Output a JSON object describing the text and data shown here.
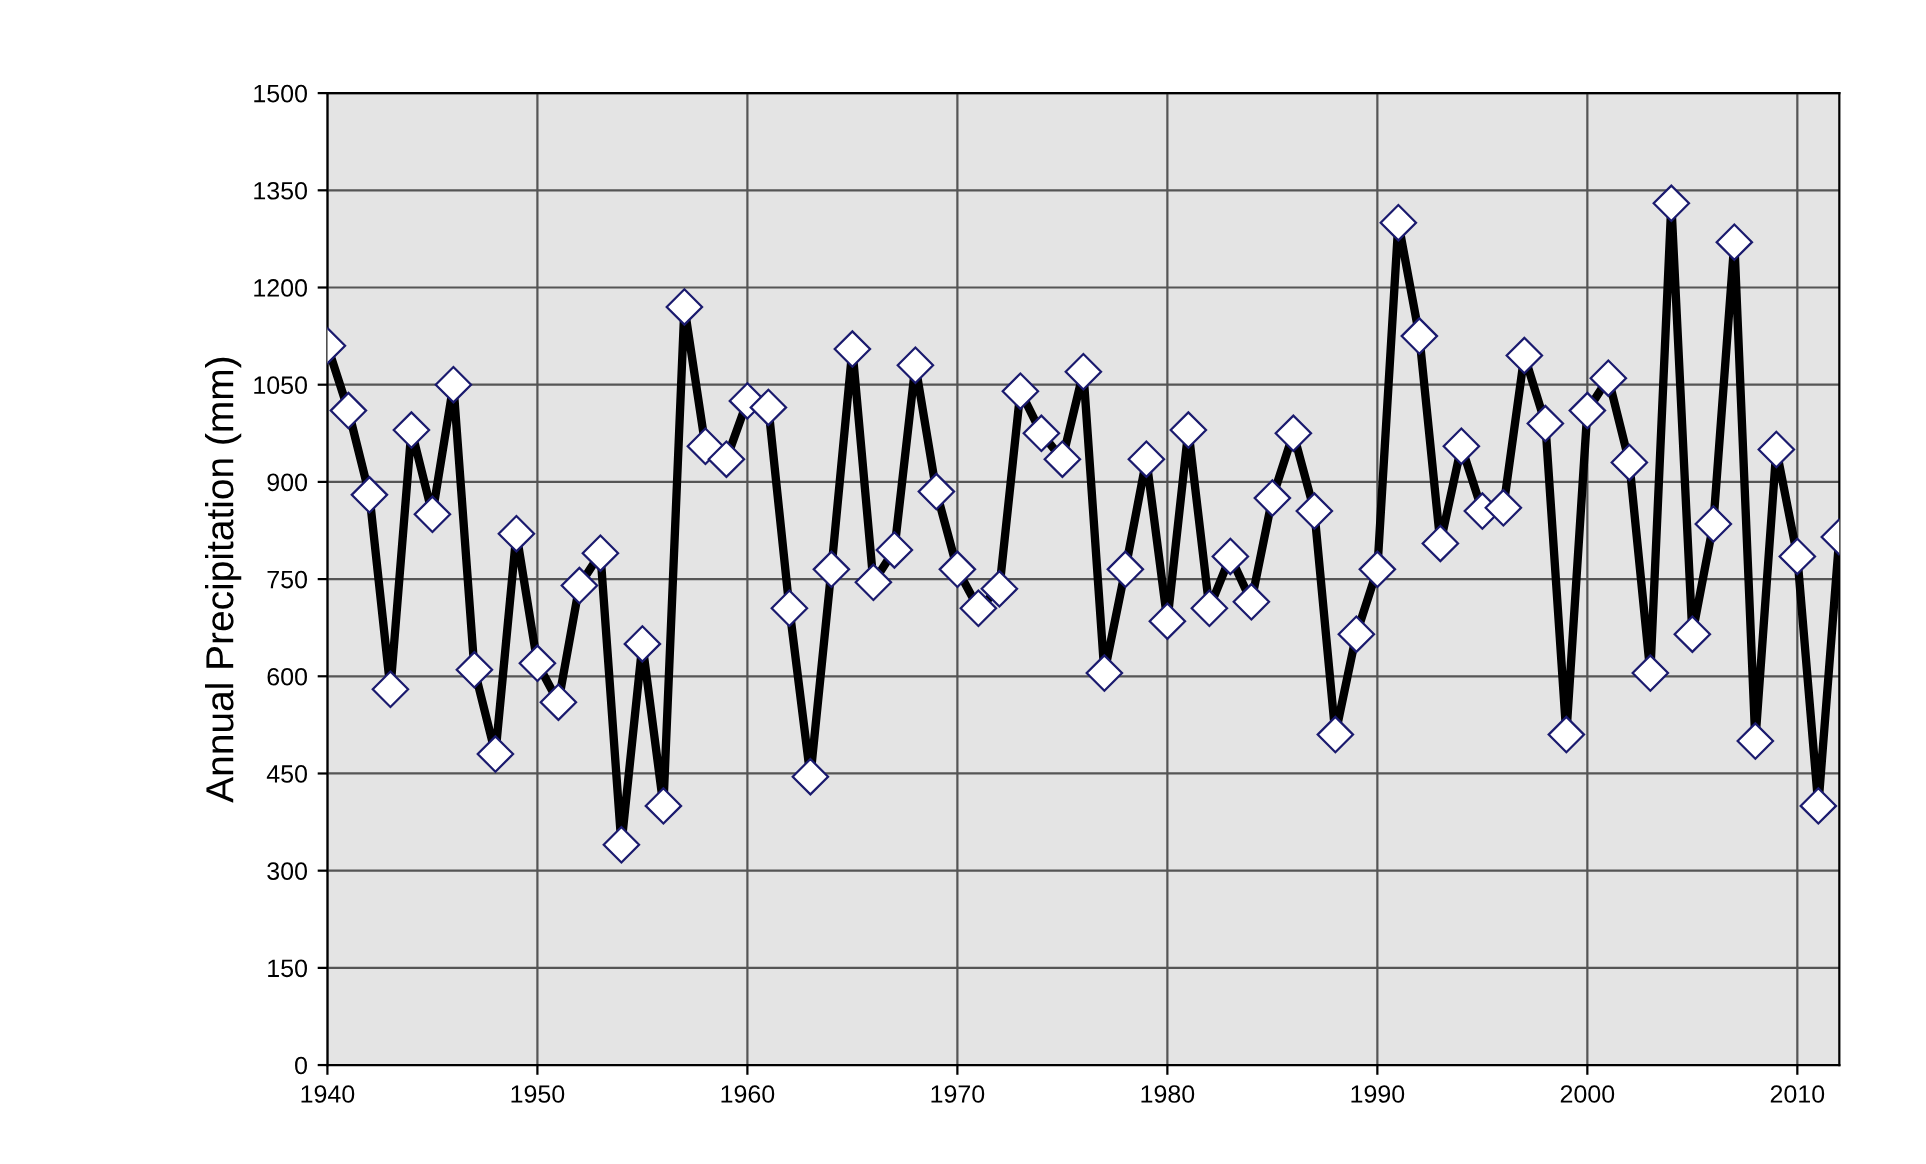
{
  "chart_data": {
    "type": "line",
    "ylabel": "Annual Precipitation (mm)",
    "x": [
      1940,
      1941,
      1942,
      1943,
      1944,
      1945,
      1946,
      1947,
      1948,
      1949,
      1950,
      1951,
      1952,
      1953,
      1954,
      1955,
      1956,
      1957,
      1958,
      1959,
      1960,
      1961,
      1962,
      1963,
      1964,
      1965,
      1966,
      1967,
      1968,
      1969,
      1970,
      1971,
      1972,
      1973,
      1974,
      1975,
      1976,
      1977,
      1978,
      1979,
      1980,
      1981,
      1982,
      1983,
      1984,
      1985,
      1986,
      1987,
      1988,
      1989,
      1990,
      1991,
      1992,
      1993,
      1994,
      1995,
      1996,
      1997,
      1998,
      1999,
      2000,
      2001,
      2002,
      2003,
      2004,
      2005,
      2006,
      2007,
      2008,
      2009,
      2010,
      2011,
      2012
    ],
    "series": [
      {
        "color": "#000000",
        "values": [
          1110,
          1010,
          880,
          580,
          980,
          850,
          1050,
          610,
          480,
          820,
          620,
          560,
          740,
          790,
          340,
          650,
          400,
          1170,
          955,
          935,
          1025,
          1015,
          705,
          445,
          765,
          1105,
          745,
          795,
          1080,
          885,
          765,
          705,
          735,
          1040,
          975,
          935,
          1070,
          605,
          765,
          935,
          685,
          980,
          705,
          785,
          715,
          875,
          975,
          855,
          510,
          665,
          765,
          1300,
          1125,
          805,
          955,
          855,
          860,
          1095,
          990,
          510,
          1010,
          1060,
          930,
          605,
          1330,
          665,
          835,
          1270,
          500,
          950,
          785,
          400,
          815
        ]
      }
    ],
    "xlim": [
      1940,
      2012
    ],
    "xticks": [
      1940,
      1950,
      1960,
      1970,
      1980,
      1990,
      2000,
      2010
    ],
    "ylim": [
      0,
      1500
    ],
    "yticks": [
      0,
      150,
      300,
      450,
      600,
      750,
      900,
      1050,
      1200,
      1350,
      1500
    ],
    "grid": true,
    "marker": "diamond",
    "line_style": "solid",
    "legend": false
  }
}
